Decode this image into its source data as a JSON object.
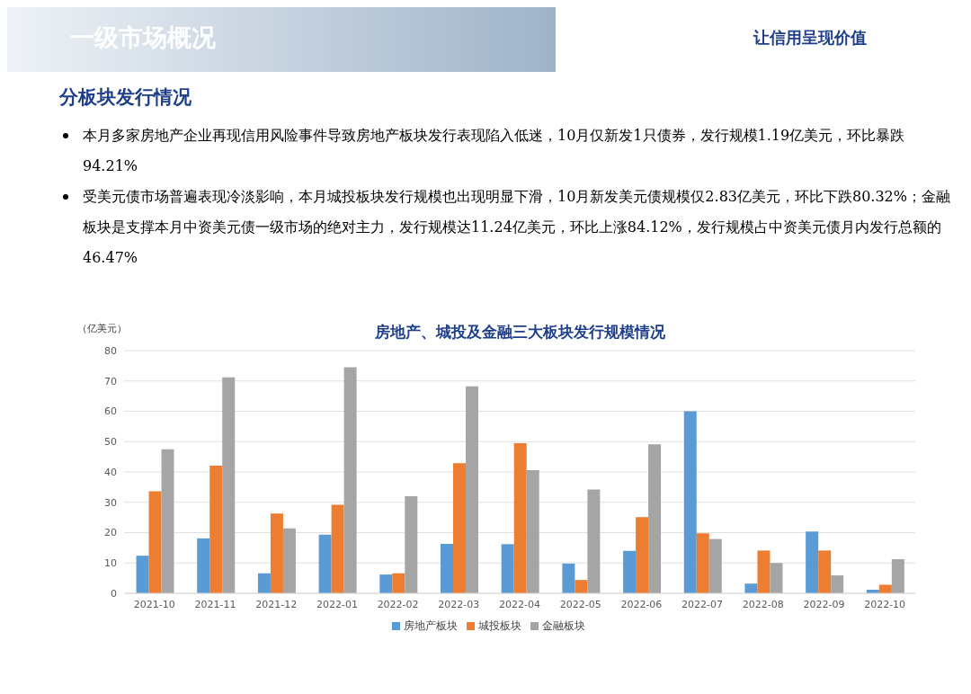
{
  "chart_data": {
    "type": "bar",
    "title": "房地产、城投及金融三大板块发行规模情况",
    "ylabel": "（亿美元）",
    "annotations": [
      "一级市场概况",
      "让信用呈现价值",
      "分板块发行情况",
      "本月多家房地产企业再现信用风险事件导致房地产板块发行表现陷入低迷，10月仅新发1只债券，发行规模1.19亿美元，环比暴跌94.21%",
      "受美元债市场普遍表现冷淡影响，本月城投板块发行规模也出现明显下滑，10月新发美元债规模仅2.83亿美元，环比下跌80.32%；金融板块是支撑本月中资美元债一级市场的绝对主力，发行规模达11.24亿美元，环比上涨84.12%，发行规模占中资美元债月内发行总额的46.47%"
    ],
    "categories": [
      "2021-10",
      "2021-11",
      "2021-12",
      "2022-01",
      "2022-02",
      "2022-03",
      "2022-04",
      "2022-05",
      "2022-06",
      "2022-07",
      "2022-08",
      "2022-09",
      "2022-10"
    ],
    "series": [
      {
        "name": "房地产板块",
        "color": "#5b9bd5",
        "values": [
          12.4,
          18.1,
          6.6,
          19.3,
          6.2,
          16.3,
          16.2,
          9.8,
          14.0,
          60.0,
          3.2,
          20.4,
          1.19
        ]
      },
      {
        "name": "城投板块",
        "color": "#ed7d31",
        "values": [
          33.6,
          42.1,
          26.3,
          29.2,
          6.6,
          42.9,
          49.5,
          4.4,
          25.1,
          19.8,
          14.1,
          14.1,
          2.83
        ]
      },
      {
        "name": "金融板块",
        "color": "#a5a5a5",
        "values": [
          47.5,
          71.2,
          21.4,
          74.5,
          32.0,
          68.2,
          40.6,
          34.2,
          49.1,
          17.9,
          10.0,
          5.9,
          11.24
        ]
      }
    ],
    "ylim": [
      0,
      80
    ],
    "yticks": [
      0,
      10,
      20,
      30,
      40,
      50,
      60,
      70,
      80
    ],
    "grid": "y",
    "legend": "bottom"
  }
}
